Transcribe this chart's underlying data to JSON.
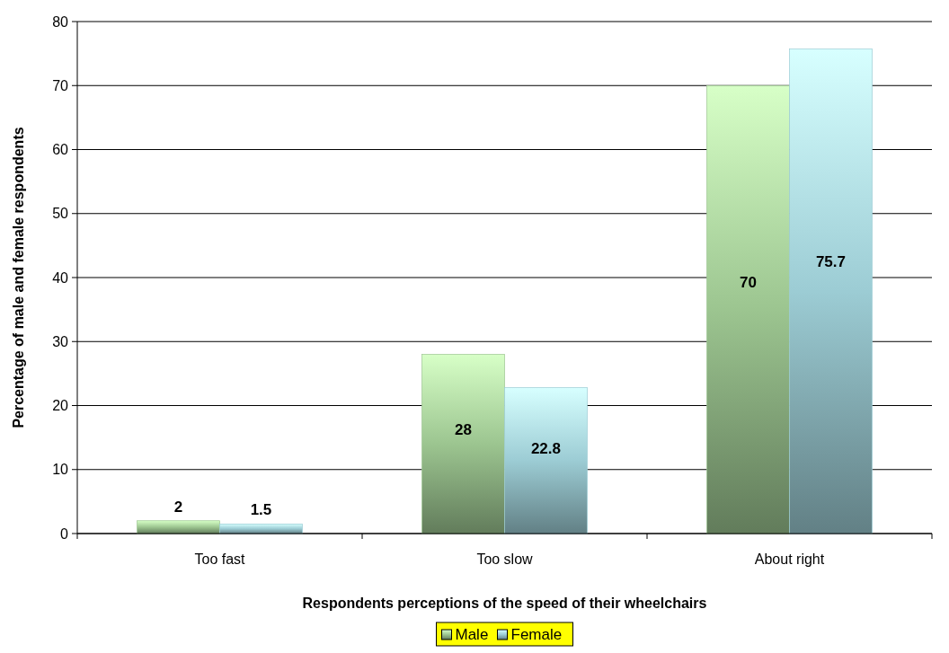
{
  "chart_data": {
    "type": "bar",
    "xlabel": "Respondents perceptions of the speed of their wheelchairs",
    "ylabel": "Percentage of male and female respondents",
    "categories": [
      "Too fast",
      "Too slow",
      "About right"
    ],
    "series": [
      {
        "name": "Male",
        "color": "#9cc590",
        "values": [
          2,
          28,
          70
        ]
      },
      {
        "name": "Female",
        "color": "#9cccd4",
        "values": [
          1.5,
          22.8,
          75.7
        ]
      }
    ],
    "ylim": [
      0,
      80
    ],
    "yticks": [
      0,
      10,
      20,
      30,
      40,
      50,
      60,
      70,
      80
    ],
    "grid": "y",
    "legend": "bottom",
    "data_labels": true
  }
}
